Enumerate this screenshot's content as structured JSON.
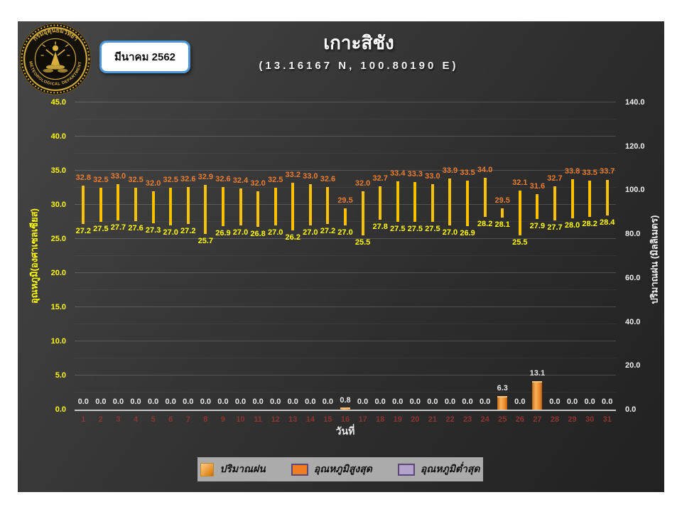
{
  "header": {
    "title": "เกาะสิชัง",
    "subtitle": "(13.16167 N, 100.80190 E)",
    "month_badge": "มีนาคม 2562"
  },
  "logo": {
    "top_text": "กรมอุตุนิยมวิทยา",
    "bottom_text": "METEOROLOGICAL DEPARTMENT"
  },
  "chart_data": {
    "type": "bar",
    "title": "เกาะสิชัง",
    "subtitle": "(13.16167 N, 100.80190 E)",
    "xlabel": "วันที่",
    "ylabel_left": "อุณหภูมิ(องศาเซลเซียส)",
    "ylabel_right": "ปริมาณฝน (มิลลิเมตร)",
    "ylim_left": [
      0,
      45
    ],
    "ytick_step_left": 5,
    "ylim_right": [
      0,
      140
    ],
    "ytick_step_right": 20,
    "grid": true,
    "legend_position": "bottom",
    "categories": [
      1,
      2,
      3,
      4,
      5,
      6,
      7,
      8,
      9,
      10,
      11,
      12,
      13,
      14,
      15,
      16,
      17,
      18,
      19,
      20,
      21,
      22,
      23,
      24,
      25,
      26,
      27,
      28,
      29,
      30,
      31
    ],
    "series": [
      {
        "name": "ปริมาณฝน",
        "axis": "right",
        "color": "#ED8A2B",
        "values": [
          0.0,
          0.0,
          0.0,
          0.0,
          0.0,
          0.0,
          0.0,
          0.0,
          0.0,
          0.0,
          0.0,
          0.0,
          0.0,
          0.0,
          0.0,
          0.8,
          0.0,
          0.0,
          0.0,
          0.0,
          0.0,
          0.0,
          0.0,
          0.0,
          6.3,
          0.0,
          13.1,
          0.0,
          0.0,
          0.0,
          0.0
        ]
      },
      {
        "name": "อุณหภูมิสูงสุด",
        "axis": "left",
        "color": "#ED7D31",
        "values": [
          32.8,
          32.5,
          33.0,
          32.5,
          32.0,
          32.5,
          32.6,
          32.9,
          32.6,
          32.4,
          32.0,
          32.5,
          33.2,
          33.0,
          32.6,
          29.5,
          32.0,
          32.7,
          33.4,
          33.3,
          33.0,
          33.9,
          33.5,
          34.0,
          29.5,
          32.1,
          31.6,
          32.7,
          33.8,
          33.5,
          33.7
        ]
      },
      {
        "name": "อุณหภูมิต่ำสุด",
        "axis": "left",
        "color": "#B3A2CC",
        "values": [
          27.2,
          27.5,
          27.7,
          27.6,
          27.3,
          27.0,
          27.2,
          25.7,
          26.9,
          27.0,
          26.8,
          27.0,
          26.2,
          27.0,
          27.2,
          27.0,
          25.5,
          27.8,
          27.5,
          27.5,
          27.5,
          27.0,
          26.9,
          28.2,
          28.1,
          25.5,
          27.9,
          27.7,
          28.0,
          28.2,
          28.4
        ]
      }
    ],
    "bar_color_temp_range": "#FFC000",
    "label_color_max": "#ED7D31",
    "label_color_min": "#FFFF00",
    "label_color_rain": "#E8E8E8",
    "day_tick_color": "#8E3431"
  }
}
